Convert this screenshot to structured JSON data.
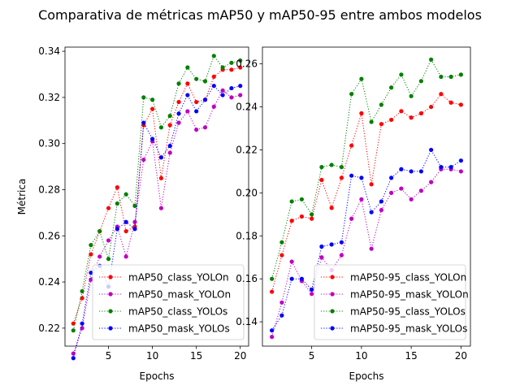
{
  "figure": {
    "title": "Comparativa de métricas mAP50 y mAP50-95 entre ambos modelos"
  },
  "chart_data": [
    {
      "type": "line",
      "xlabel": "Epochs",
      "ylabel": "Métrica",
      "xlim": [
        0.05,
        20.95
      ],
      "ylim": [
        0.2122,
        0.3418
      ],
      "xticks": [
        5,
        10,
        15,
        20
      ],
      "yticks": [
        0.22,
        0.24,
        0.26,
        0.28,
        0.3,
        0.32,
        0.34
      ],
      "ytick_labels": [
        "0.22",
        "0.24",
        "0.26",
        "0.28",
        "0.30",
        "0.32",
        "0.34"
      ],
      "grid": false,
      "legend_position": "lower-right",
      "x": [
        1,
        2,
        3,
        4,
        5,
        6,
        7,
        8,
        9,
        10,
        11,
        12,
        13,
        14,
        15,
        16,
        17,
        18,
        19,
        20
      ],
      "series": [
        {
          "name": "mAP50_class_YOLOn",
          "color": "#ff0000",
          "values": [
            0.222,
            0.233,
            0.252,
            0.262,
            0.272,
            0.281,
            0.262,
            0.264,
            0.308,
            0.315,
            0.285,
            0.308,
            0.318,
            0.326,
            0.318,
            0.319,
            0.329,
            0.332,
            0.332,
            0.333
          ]
        },
        {
          "name": "mAP50_mask_YOLOn",
          "color": "#bf00bf",
          "values": [
            0.209,
            0.22,
            0.241,
            0.251,
            0.258,
            0.264,
            0.251,
            0.266,
            0.293,
            0.301,
            0.272,
            0.296,
            0.309,
            0.314,
            0.306,
            0.307,
            0.316,
            0.323,
            0.32,
            0.321
          ]
        },
        {
          "name": "mAP50_class_YOLOs",
          "color": "#008000",
          "values": [
            0.219,
            0.236,
            0.256,
            0.262,
            0.25,
            0.274,
            0.278,
            0.273,
            0.32,
            0.319,
            0.307,
            0.312,
            0.326,
            0.333,
            0.328,
            0.327,
            0.338,
            0.333,
            0.335,
            0.336
          ]
        },
        {
          "name": "mAP50_mask_YOLOs",
          "color": "#0000ff",
          "values": [
            0.207,
            0.222,
            0.244,
            0.247,
            0.238,
            0.263,
            0.266,
            0.263,
            0.309,
            0.302,
            0.294,
            0.299,
            0.313,
            0.321,
            0.314,
            0.319,
            0.325,
            0.321,
            0.324,
            0.325
          ]
        }
      ]
    },
    {
      "type": "line",
      "xlabel": "Epochs",
      "ylabel": "",
      "xlim": [
        0.05,
        20.95
      ],
      "ylim": [
        0.1287,
        0.2678
      ],
      "xticks": [
        5,
        10,
        15,
        20
      ],
      "yticks": [
        0.14,
        0.16,
        0.18,
        0.2,
        0.22,
        0.24,
        0.26
      ],
      "ytick_labels": [
        "0.14",
        "0.16",
        "0.18",
        "0.20",
        "0.22",
        "0.24",
        "0.26"
      ],
      "grid": false,
      "legend_position": "lower-right",
      "x": [
        1,
        2,
        3,
        4,
        5,
        6,
        7,
        8,
        9,
        10,
        11,
        12,
        13,
        14,
        15,
        16,
        17,
        18,
        19,
        20
      ],
      "series": [
        {
          "name": "mAP50-95_class_YOLOn",
          "color": "#ff0000",
          "values": [
            0.154,
            0.171,
            0.187,
            0.189,
            0.188,
            0.206,
            0.193,
            0.207,
            0.222,
            0.237,
            0.204,
            0.232,
            0.234,
            0.238,
            0.235,
            0.237,
            0.24,
            0.246,
            0.242,
            0.241
          ]
        },
        {
          "name": "mAP50-95_mask_YOLOn",
          "color": "#bf00bf",
          "values": [
            0.133,
            0.149,
            0.168,
            0.159,
            0.153,
            0.17,
            0.164,
            0.171,
            0.188,
            0.197,
            0.174,
            0.192,
            0.2,
            0.202,
            0.197,
            0.201,
            0.205,
            0.211,
            0.211,
            0.21
          ]
        },
        {
          "name": "mAP50-95_class_YOLOs",
          "color": "#008000",
          "values": [
            0.16,
            0.177,
            0.196,
            0.197,
            0.19,
            0.212,
            0.213,
            0.212,
            0.246,
            0.253,
            0.233,
            0.241,
            0.249,
            0.255,
            0.245,
            0.252,
            0.262,
            0.254,
            0.254,
            0.255
          ]
        },
        {
          "name": "mAP50-95_mask_YOLOs",
          "color": "#0000ff",
          "values": [
            0.136,
            0.143,
            0.16,
            0.16,
            0.155,
            0.175,
            0.176,
            0.177,
            0.208,
            0.207,
            0.191,
            0.196,
            0.207,
            0.211,
            0.21,
            0.21,
            0.22,
            0.212,
            0.212,
            0.215
          ]
        }
      ]
    }
  ]
}
